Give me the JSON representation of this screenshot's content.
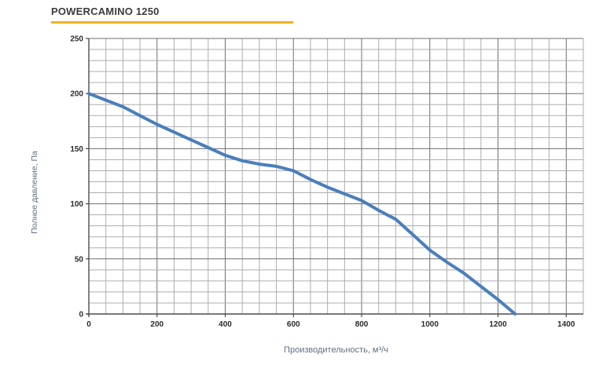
{
  "title": {
    "text": "POWERCAMINO 1250",
    "underline_color": "#F2B21E"
  },
  "colors": {
    "curve": "#4A7EBD",
    "grid_minor": "#ADADAD",
    "grid_major": "#6F6F6F",
    "axis": "#4D4D4D",
    "tick_label": "#2B2B2B",
    "axis_title": "#5E7081",
    "title_text": "#3D3D3D",
    "background": "#FFFFFF"
  },
  "chart_data": {
    "type": "line",
    "title": "POWERCAMINO 1250",
    "xlabel": "Производительность, м³/ч",
    "ylabel": "Полное давление, Па",
    "xlim": [
      0,
      1450
    ],
    "ylim": [
      0,
      250
    ],
    "x_major_ticks": [
      0,
      200,
      400,
      600,
      800,
      1000,
      1200,
      1400
    ],
    "y_major_ticks": [
      0,
      50,
      100,
      150,
      200,
      250
    ],
    "x_minor_step": 50,
    "y_minor_step": 10,
    "grid": "both",
    "legend": "none",
    "series": [
      {
        "name": "fan-performance-curve",
        "color": "#4A7EBD",
        "x": [
          0,
          50,
          100,
          150,
          200,
          250,
          300,
          350,
          400,
          450,
          500,
          550,
          600,
          650,
          700,
          750,
          800,
          850,
          900,
          950,
          1000,
          1050,
          1100,
          1150,
          1200,
          1250
        ],
        "y": [
          200,
          194,
          188,
          180,
          172,
          165,
          158,
          151,
          144,
          139,
          136,
          134,
          130,
          122,
          115,
          109,
          103,
          94,
          86,
          72,
          58,
          47,
          37,
          25,
          13,
          0
        ]
      }
    ]
  }
}
